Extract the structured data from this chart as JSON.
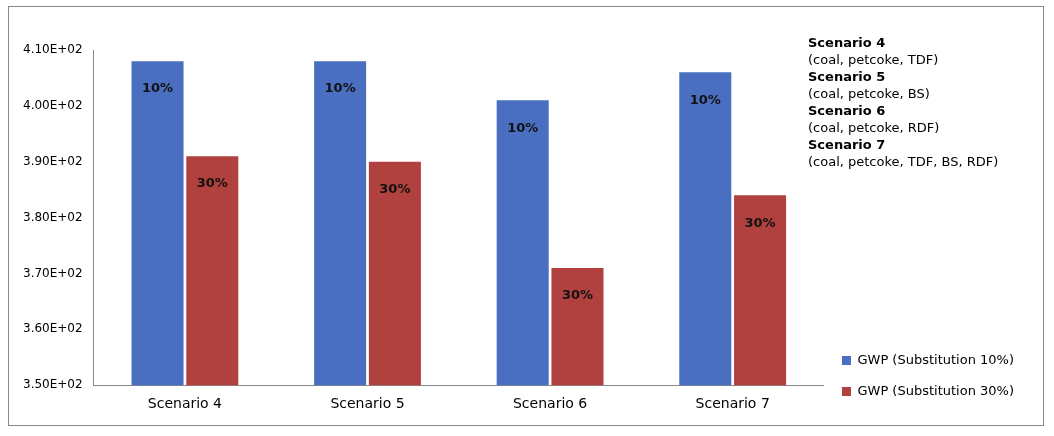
{
  "chart_data": {
    "type": "bar",
    "categories": [
      "Scenario 4",
      "Scenario 5",
      "Scenario 6",
      "Scenario 7"
    ],
    "series": [
      {
        "name": "GWP (Substitution 10%)",
        "color": "#4a6fc1",
        "values": [
          408,
          408,
          401,
          406
        ]
      },
      {
        "name": "GWP (Substitution 30%)",
        "color": "#b0413e",
        "values": [
          391,
          390,
          371,
          384
        ]
      }
    ],
    "ylim": [
      350,
      410
    ],
    "yticks": [
      {
        "value": 350,
        "label": "3.50E+02"
      },
      {
        "value": 360,
        "label": "3.60E+02"
      },
      {
        "value": 370,
        "label": "3.70E+02"
      },
      {
        "value": 380,
        "label": "3.80E+02"
      },
      {
        "value": 390,
        "label": "3.90E+02"
      },
      {
        "value": 400,
        "label": "4.00E+02"
      },
      {
        "value": 410,
        "label": "4.10E+02"
      }
    ],
    "grid": false,
    "legend": "bottom right",
    "annotations": [
      {
        "text": "10%",
        "x": "Scenario 4",
        "y": 403
      },
      {
        "text": "30%",
        "x": "Scenario 4",
        "y": 386
      },
      {
        "text": "10%",
        "x": "Scenario 5",
        "y": 403
      },
      {
        "text": "30%",
        "x": "Scenario 5",
        "y": 385
      },
      {
        "text": "10%",
        "x": "Scenario 6",
        "y": 396
      },
      {
        "text": "30%",
        "x": "Scenario 6",
        "y": 366
      },
      {
        "text": "10%",
        "x": "Scenario 7",
        "y": 401
      },
      {
        "text": "30%",
        "x": "Scenario 7",
        "y": 379
      },
      "Scenario 4",
      "(coal, petcoke, TDF)",
      "Scenario 5",
      "(coal, petcoke, BS)",
      "Scenario 6",
      "(coal, petcoke, RDF)",
      "Scenario 7",
      "(coal, petcoke, TDF, BS, RDF)"
    ]
  }
}
